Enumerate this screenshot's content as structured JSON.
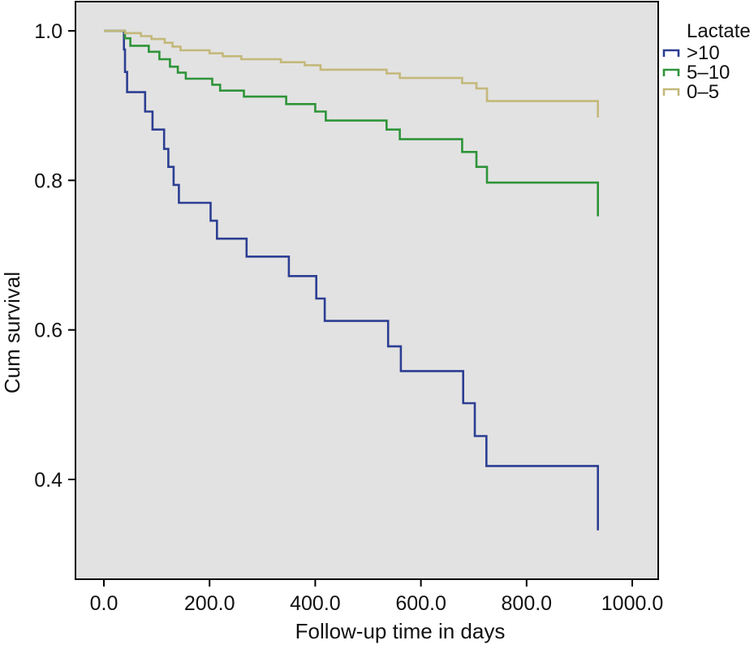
{
  "chart_data": {
    "type": "line",
    "step": true,
    "xlabel": "Follow-up time in days",
    "ylabel": "Cum survival",
    "xlim": [
      -50,
      1020
    ],
    "ylim": [
      0.29,
      1.065
    ],
    "x_ticks": [
      0,
      200,
      400,
      600,
      800,
      1000
    ],
    "x_tick_labels": [
      "0.0",
      "200.0",
      "400.0",
      "600.0",
      "800.0",
      "1000.0"
    ],
    "y_ticks": [
      0.4,
      0.6,
      0.8,
      1.0
    ],
    "y_tick_labels": [
      "0.4",
      "0.6",
      "0.8",
      "1.0"
    ],
    "grid": false,
    "background": "#e2e2e2",
    "legend": {
      "title": "Lactate",
      "position": "top-right outside"
    },
    "series": [
      {
        "name": ">10",
        "color": "#2c3e93",
        "points": [
          [
            0,
            1.0
          ],
          [
            38,
            1.0
          ],
          [
            38,
            0.975
          ],
          [
            40,
            0.975
          ],
          [
            40,
            0.945
          ],
          [
            44,
            0.945
          ],
          [
            44,
            0.918
          ],
          [
            78,
            0.918
          ],
          [
            78,
            0.892
          ],
          [
            92,
            0.892
          ],
          [
            92,
            0.868
          ],
          [
            114,
            0.868
          ],
          [
            114,
            0.842
          ],
          [
            122,
            0.842
          ],
          [
            122,
            0.818
          ],
          [
            132,
            0.818
          ],
          [
            132,
            0.794
          ],
          [
            142,
            0.794
          ],
          [
            142,
            0.77
          ],
          [
            202,
            0.77
          ],
          [
            202,
            0.746
          ],
          [
            214,
            0.746
          ],
          [
            214,
            0.722
          ],
          [
            270,
            0.722
          ],
          [
            270,
            0.698
          ],
          [
            350,
            0.698
          ],
          [
            350,
            0.672
          ],
          [
            402,
            0.672
          ],
          [
            402,
            0.642
          ],
          [
            418,
            0.642
          ],
          [
            418,
            0.612
          ],
          [
            538,
            0.612
          ],
          [
            538,
            0.578
          ],
          [
            562,
            0.578
          ],
          [
            562,
            0.545
          ],
          [
            680,
            0.545
          ],
          [
            680,
            0.502
          ],
          [
            702,
            0.502
          ],
          [
            702,
            0.458
          ],
          [
            724,
            0.458
          ],
          [
            724,
            0.418
          ],
          [
            935,
            0.418
          ],
          [
            935,
            0.332
          ]
        ]
      },
      {
        "name": "5–10",
        "color": "#2e9439",
        "points": [
          [
            0,
            1.0
          ],
          [
            40,
            1.0
          ],
          [
            40,
            0.99
          ],
          [
            50,
            0.99
          ],
          [
            50,
            0.98
          ],
          [
            85,
            0.98
          ],
          [
            85,
            0.972
          ],
          [
            105,
            0.972
          ],
          [
            105,
            0.962
          ],
          [
            125,
            0.962
          ],
          [
            125,
            0.952
          ],
          [
            140,
            0.952
          ],
          [
            140,
            0.944
          ],
          [
            155,
            0.944
          ],
          [
            155,
            0.936
          ],
          [
            205,
            0.936
          ],
          [
            205,
            0.928
          ],
          [
            220,
            0.928
          ],
          [
            220,
            0.92
          ],
          [
            265,
            0.92
          ],
          [
            265,
            0.912
          ],
          [
            345,
            0.912
          ],
          [
            345,
            0.902
          ],
          [
            400,
            0.902
          ],
          [
            400,
            0.892
          ],
          [
            420,
            0.892
          ],
          [
            420,
            0.88
          ],
          [
            535,
            0.88
          ],
          [
            535,
            0.868
          ],
          [
            560,
            0.868
          ],
          [
            560,
            0.855
          ],
          [
            678,
            0.855
          ],
          [
            678,
            0.838
          ],
          [
            705,
            0.838
          ],
          [
            705,
            0.818
          ],
          [
            725,
            0.818
          ],
          [
            725,
            0.797
          ],
          [
            935,
            0.797
          ],
          [
            935,
            0.752
          ]
        ]
      },
      {
        "name": "0–5",
        "color": "#c4b87a",
        "points": [
          [
            0,
            1.0
          ],
          [
            40,
            1.0
          ],
          [
            40,
            0.997
          ],
          [
            70,
            0.997
          ],
          [
            70,
            0.993
          ],
          [
            90,
            0.993
          ],
          [
            90,
            0.989
          ],
          [
            115,
            0.989
          ],
          [
            115,
            0.984
          ],
          [
            130,
            0.984
          ],
          [
            130,
            0.979
          ],
          [
            145,
            0.979
          ],
          [
            145,
            0.974
          ],
          [
            200,
            0.974
          ],
          [
            200,
            0.97
          ],
          [
            225,
            0.97
          ],
          [
            225,
            0.966
          ],
          [
            260,
            0.966
          ],
          [
            260,
            0.962
          ],
          [
            335,
            0.962
          ],
          [
            335,
            0.958
          ],
          [
            380,
            0.958
          ],
          [
            380,
            0.954
          ],
          [
            410,
            0.954
          ],
          [
            410,
            0.948
          ],
          [
            535,
            0.948
          ],
          [
            535,
            0.943
          ],
          [
            560,
            0.943
          ],
          [
            560,
            0.937
          ],
          [
            678,
            0.937
          ],
          [
            678,
            0.93
          ],
          [
            705,
            0.93
          ],
          [
            705,
            0.923
          ],
          [
            725,
            0.923
          ],
          [
            725,
            0.906
          ],
          [
            935,
            0.906
          ],
          [
            935,
            0.884
          ]
        ]
      }
    ]
  }
}
